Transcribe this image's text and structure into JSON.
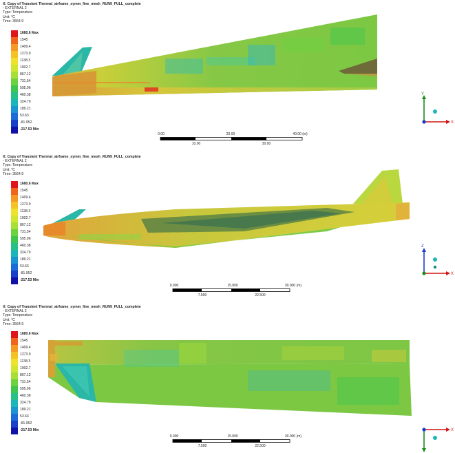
{
  "panels": [
    {
      "title": "X: Copy of Transient Thermal_airframe_symm_fine_mesh_RUN9_FULL_complete",
      "subtitle": "- EXTERNAL 2",
      "type": "Type: Temperature",
      "unit": "Unit: °C",
      "time": "Time: 3564.9",
      "scale_top": [
        "0.00",
        "20.00",
        "40.00 (m)"
      ],
      "scale_bottom": [
        "10.00",
        "30.00"
      ],
      "axes": [
        "Y",
        "X"
      ]
    },
    {
      "title": "X: Copy of Transient Thermal_airframe_symm_fine_mesh_RUN9_FULL_complete",
      "subtitle": "- EXTERNAL 2",
      "type": "Type: Temperature",
      "unit": "Unit: °C",
      "time": "Time: 3564.9",
      "scale_top": [
        "0.000",
        "15.000",
        "30.000 (m)"
      ],
      "scale_bottom": [
        "7.500",
        "22.500"
      ],
      "axes": [
        "Z",
        "X"
      ]
    },
    {
      "title": "X: Copy of Transient Thermal_airframe_symm_fine_mesh_RUN9_FULL_complete",
      "subtitle": "- EXTERNAL 2",
      "type": "Type: Temperature",
      "unit": "Unit: °C",
      "time": "Time: 3564.9",
      "scale_top": [
        "0.000",
        "15.000",
        "30.000 (m)"
      ],
      "scale_bottom": [
        "7.500",
        "22.500"
      ],
      "axes": [
        "Y",
        "X"
      ]
    }
  ],
  "legend": {
    "labels": [
      "1680.6 Max",
      "1545",
      "1409.4",
      "1273.9",
      "1138.3",
      "1002.7",
      "867.12",
      "731.54",
      "595.96",
      "460.38",
      "324.79",
      "189.21",
      "53.63",
      "-81.952",
      "-217.53 Min"
    ],
    "colors": [
      "#e0141b",
      "#f0641c",
      "#f49a24",
      "#f4c225",
      "#eee22a",
      "#d1e630",
      "#a6e036",
      "#6cd23e",
      "#3fc650",
      "#27c087",
      "#1ab6b9",
      "#1b95d2",
      "#1b6cd6",
      "#1840c9",
      "#1111a8"
    ]
  },
  "colors": {
    "hot": "#e0141b",
    "warm": "#f49a24",
    "yellow": "#e2d838",
    "green": "#7ac843",
    "cyan": "#1ab6b9",
    "axis_x": "#d21414",
    "axis_y": "#1a8a1a",
    "axis_z": "#1a3cc8"
  }
}
